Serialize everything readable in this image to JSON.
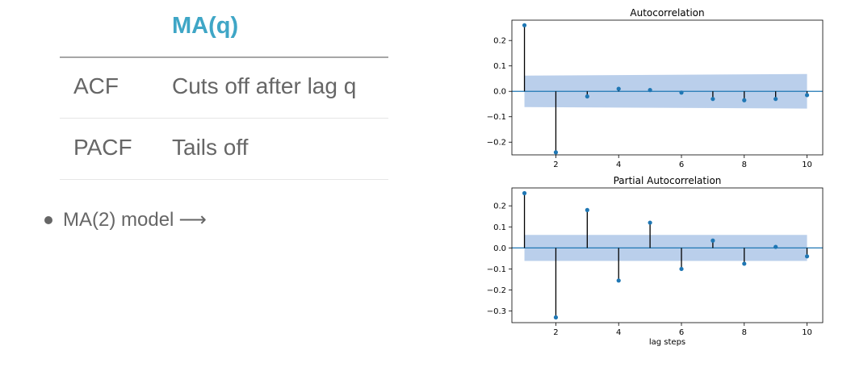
{
  "table": {
    "header": "MA(q)",
    "rows": [
      {
        "label": "ACF",
        "value": "Cuts off after lag q"
      },
      {
        "label": "PACF",
        "value": "Tails off"
      }
    ]
  },
  "bullet": {
    "text": "MA(2) model",
    "arrow": "⟶"
  },
  "colors": {
    "accent": "#3fa6c6",
    "text": "#666666",
    "stem": "#000000",
    "marker": "#1f77b4",
    "band": "#aec7e8"
  },
  "chart_data": [
    {
      "type": "stem",
      "title": "Autocorrelation",
      "xlabel": "",
      "x": [
        1,
        2,
        3,
        4,
        5,
        6,
        7,
        8,
        9,
        10
      ],
      "values": [
        0.26,
        -0.24,
        -0.02,
        0.01,
        0.005,
        -0.005,
        -0.03,
        -0.035,
        -0.03,
        -0.015
      ],
      "xticks": [
        2,
        4,
        6,
        8,
        10
      ],
      "yticks": [
        -0.2,
        -0.1,
        0.0,
        0.1,
        0.2
      ],
      "ytick_labels": [
        "−0.2",
        "−0.1",
        "0.0",
        "0.1",
        "0.2"
      ],
      "xlim": [
        0.6,
        10.5
      ],
      "ylim": [
        -0.25,
        0.28
      ],
      "confidence_band": {
        "start": 1,
        "end": 10,
        "upper_start": 0.062,
        "upper_end": 0.068
      }
    },
    {
      "type": "stem",
      "title": "Partial Autocorrelation",
      "xlabel": "lag steps",
      "x": [
        1,
        2,
        3,
        4,
        5,
        6,
        7,
        8,
        9,
        10
      ],
      "values": [
        0.26,
        -0.33,
        0.18,
        -0.155,
        0.12,
        -0.1,
        0.035,
        -0.075,
        0.005,
        -0.04
      ],
      "xticks": [
        2,
        4,
        6,
        8,
        10
      ],
      "yticks": [
        -0.3,
        -0.2,
        -0.1,
        0.0,
        0.1,
        0.2
      ],
      "ytick_labels": [
        "−0.3",
        "−0.2",
        "−0.1",
        "0.0",
        "0.1",
        "0.2"
      ],
      "xlim": [
        0.6,
        10.5
      ],
      "ylim": [
        -0.355,
        0.285
      ],
      "confidence_band": {
        "start": 1,
        "end": 10,
        "upper_start": 0.062,
        "upper_end": 0.062
      }
    }
  ]
}
